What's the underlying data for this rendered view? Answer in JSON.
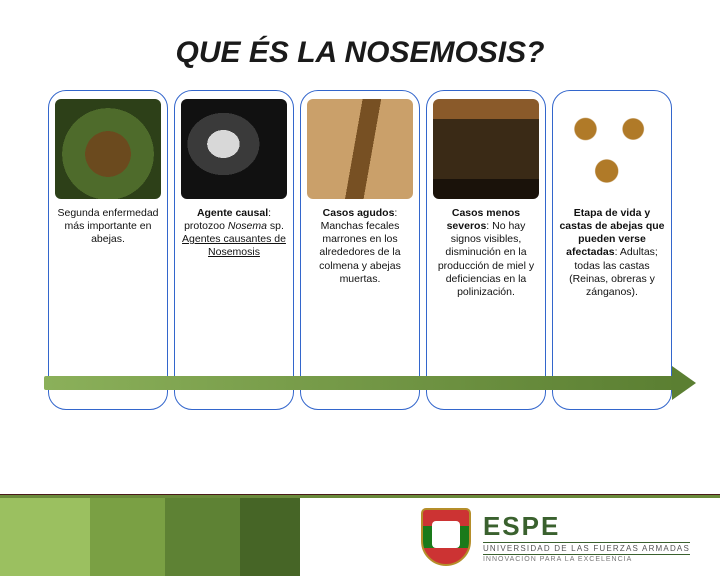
{
  "title": "QUE ÉS LA NOSEMOSIS?",
  "colors": {
    "col_border": "#3366cc",
    "arrow_fill": "#8bb05a",
    "arrow_gradient_end": "#5b7f32",
    "divider_top": "#4a1a1a",
    "divider_bottom": "#6a8a3a",
    "accent1": "#9bc060",
    "accent2": "#7aa044",
    "accent3": "#5e8234",
    "accent4": "#466526",
    "brand": "#3a612e"
  },
  "columns": [
    {
      "id": "col-importance",
      "img_class": "img1",
      "lines": [
        "Segunda",
        "enfermedad más",
        "importante en",
        "abejas."
      ]
    },
    {
      "id": "col-agent",
      "img_class": "img2",
      "segments": [
        {
          "text": "Agente causal",
          "style": "bold"
        },
        {
          "text": ": protozoo ",
          "style": ""
        },
        {
          "text": "Nosema",
          "style": "italic"
        },
        {
          "text": " sp. ",
          "style": ""
        },
        {
          "text": "Agentes causantes de Nosemosis",
          "style": "underline"
        }
      ]
    },
    {
      "id": "col-acute",
      "img_class": "img3",
      "segments": [
        {
          "text": "Casos agudos",
          "style": "bold"
        },
        {
          "text": ": Manchas fecales marrones en los alrededores de la colmena y abejas muertas.",
          "style": ""
        }
      ]
    },
    {
      "id": "col-mild",
      "img_class": "img4",
      "segments": [
        {
          "text": "Casos menos severos",
          "style": "bold"
        },
        {
          "text": ": No hay signos visibles, disminución en la producción de miel y deficiencias en la polinización.",
          "style": ""
        }
      ]
    },
    {
      "id": "col-stage",
      "img_class": "img5",
      "segments": [
        {
          "text": "Etapa de vida y castas de abejas que pueden verse afectadas",
          "style": "bold"
        },
        {
          "text": ": Adultas; todas las castas (Reinas, obreras y zánganos).",
          "style": ""
        }
      ]
    }
  ],
  "footer": {
    "brand": "ESPE",
    "sub": "UNIVERSIDAD DE LAS FUERZAS ARMADAS",
    "tag": "INNOVACIÓN PARA LA EXCELENCIA"
  }
}
